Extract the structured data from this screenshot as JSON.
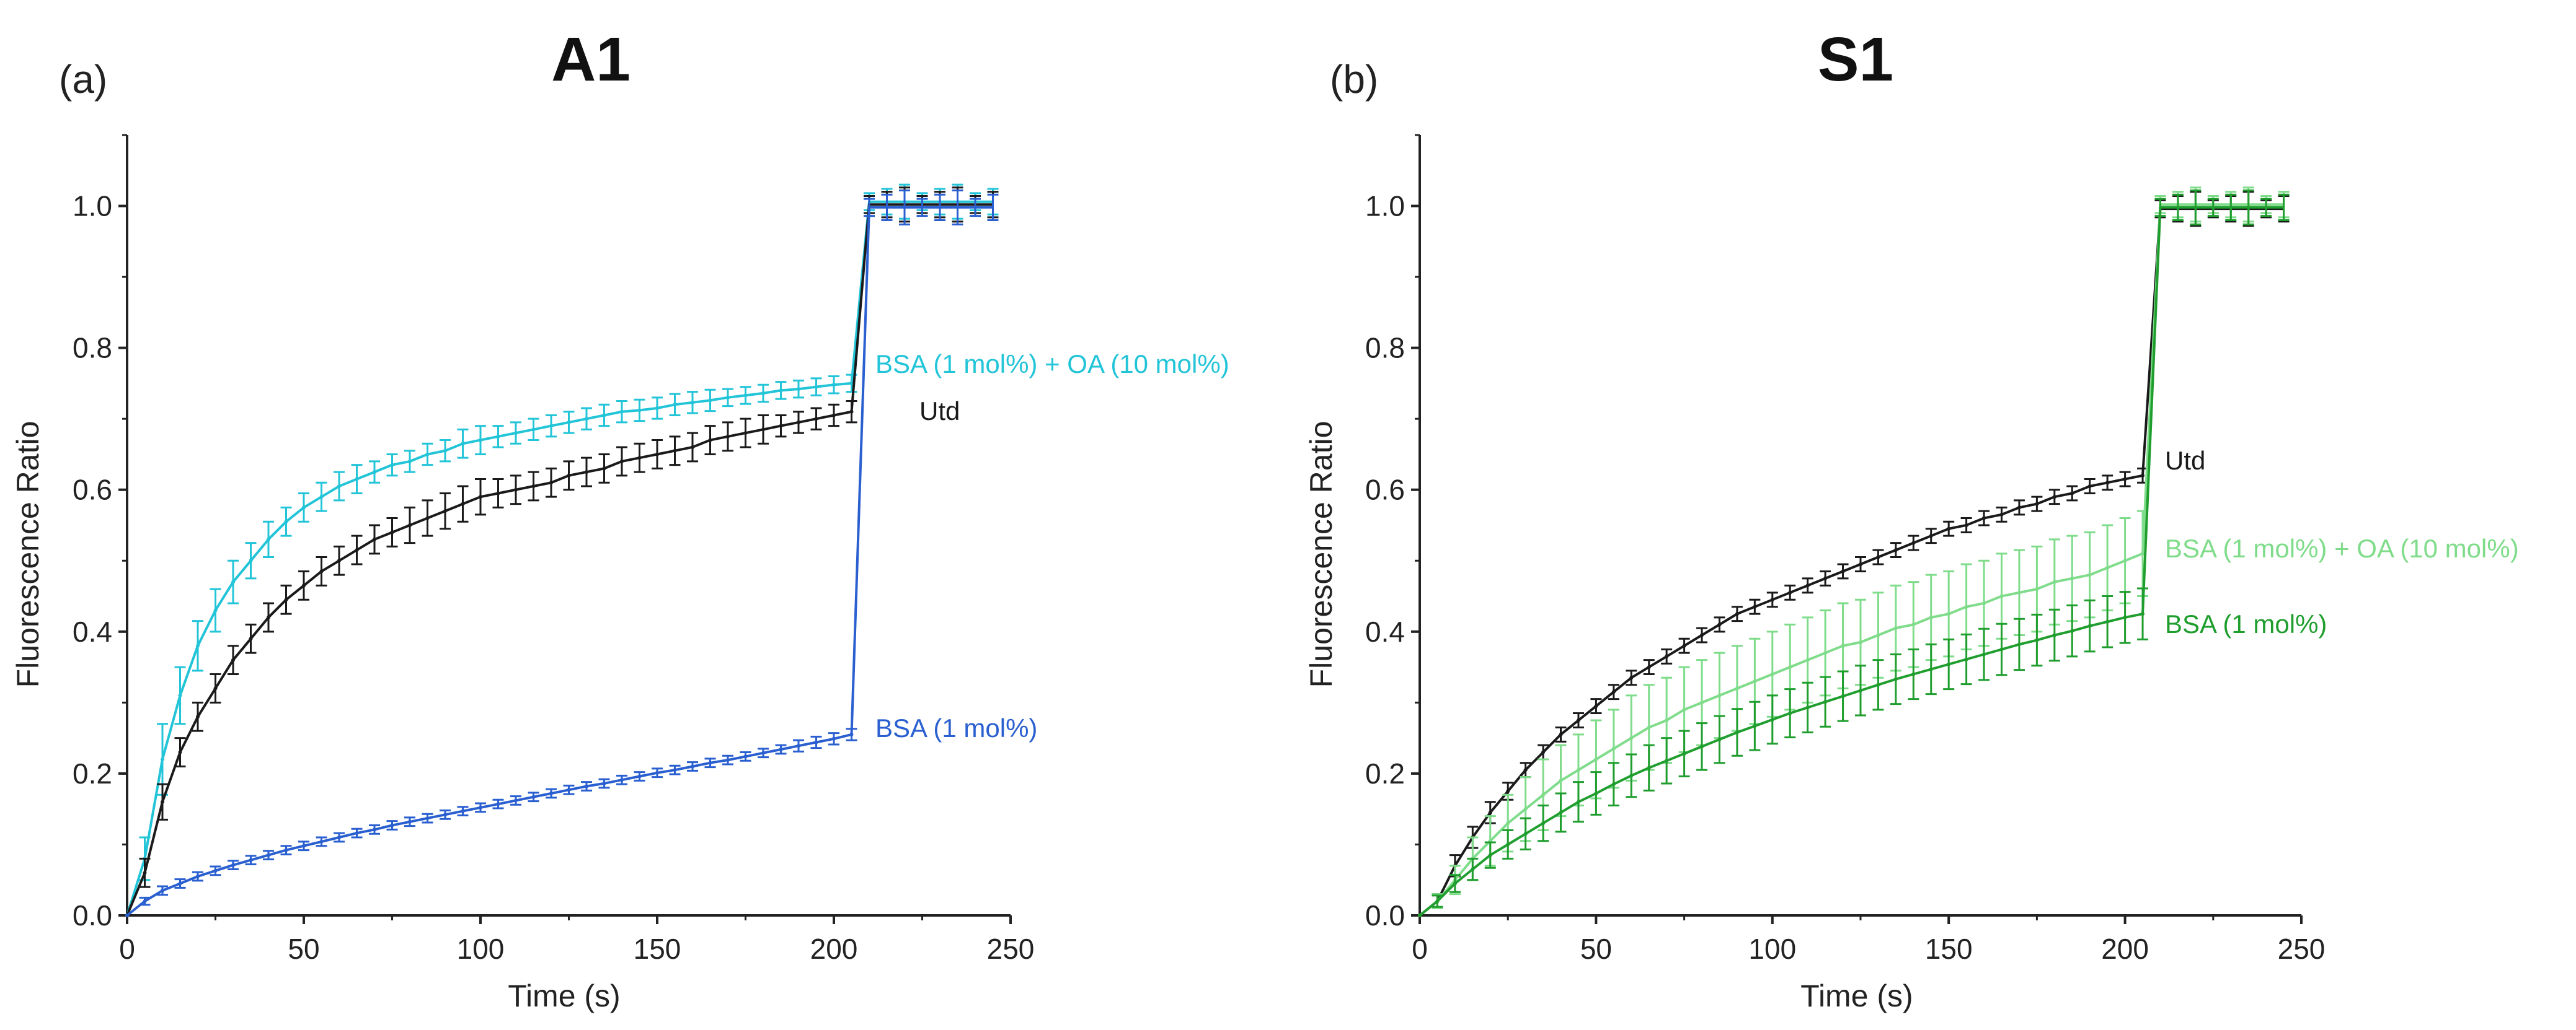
{
  "chart_data": [
    {
      "panel": "(a)",
      "title": "A1",
      "type": "line",
      "xlabel": "Time (s)",
      "ylabel": "Fluorescence Ratio",
      "xlim": [
        0,
        250
      ],
      "ylim": [
        0,
        1.1
      ],
      "xticks": [
        "0",
        "50",
        "100",
        "150",
        "200",
        "250"
      ],
      "yticks": [
        "0.0",
        "0.2",
        "0.4",
        "0.6",
        "0.8",
        "1.0"
      ],
      "series": [
        {
          "name": "BSA (1 mol%) + OA (10 mol%)",
          "color": "#22c4d8",
          "plateau_after_jump": 1.01,
          "x": [
            0,
            5,
            10,
            15,
            20,
            25,
            30,
            35,
            40,
            45,
            50,
            55,
            60,
            65,
            70,
            75,
            80,
            85,
            90,
            95,
            100,
            105,
            110,
            115,
            120,
            125,
            130,
            135,
            140,
            145,
            150,
            155,
            160,
            165,
            170,
            175,
            180,
            185,
            190,
            195,
            200,
            205
          ],
          "y": [
            0.0,
            0.08,
            0.22,
            0.31,
            0.38,
            0.43,
            0.47,
            0.5,
            0.53,
            0.555,
            0.575,
            0.59,
            0.605,
            0.615,
            0.625,
            0.635,
            0.64,
            0.65,
            0.655,
            0.665,
            0.67,
            0.675,
            0.68,
            0.685,
            0.69,
            0.695,
            0.7,
            0.705,
            0.71,
            0.712,
            0.715,
            0.72,
            0.723,
            0.726,
            0.73,
            0.733,
            0.736,
            0.74,
            0.742,
            0.745,
            0.748,
            0.75
          ],
          "err": [
            0,
            0.03,
            0.05,
            0.04,
            0.035,
            0.03,
            0.03,
            0.025,
            0.025,
            0.02,
            0.02,
            0.02,
            0.02,
            0.02,
            0.015,
            0.015,
            0.015,
            0.015,
            0.015,
            0.02,
            0.02,
            0.015,
            0.015,
            0.015,
            0.015,
            0.015,
            0.015,
            0.015,
            0.015,
            0.015,
            0.015,
            0.015,
            0.015,
            0.015,
            0.012,
            0.012,
            0.012,
            0.012,
            0.012,
            0.012,
            0.012,
            0.012
          ]
        },
        {
          "name": "Utd",
          "color": "#1a1a1a",
          "plateau_after_jump": 1.0,
          "x": [
            0,
            5,
            10,
            15,
            20,
            25,
            30,
            35,
            40,
            45,
            50,
            55,
            60,
            65,
            70,
            75,
            80,
            85,
            90,
            95,
            100,
            105,
            110,
            115,
            120,
            125,
            130,
            135,
            140,
            145,
            150,
            155,
            160,
            165,
            170,
            175,
            180,
            185,
            190,
            195,
            200,
            205
          ],
          "y": [
            0.0,
            0.06,
            0.16,
            0.23,
            0.28,
            0.32,
            0.36,
            0.39,
            0.42,
            0.445,
            0.465,
            0.485,
            0.5,
            0.515,
            0.53,
            0.54,
            0.55,
            0.56,
            0.57,
            0.58,
            0.59,
            0.595,
            0.6,
            0.605,
            0.61,
            0.62,
            0.625,
            0.63,
            0.64,
            0.645,
            0.65,
            0.655,
            0.66,
            0.67,
            0.675,
            0.68,
            0.685,
            0.69,
            0.695,
            0.7,
            0.705,
            0.71
          ],
          "err": [
            0,
            0.02,
            0.025,
            0.02,
            0.02,
            0.02,
            0.02,
            0.02,
            0.02,
            0.02,
            0.02,
            0.02,
            0.02,
            0.02,
            0.02,
            0.02,
            0.025,
            0.025,
            0.025,
            0.025,
            0.025,
            0.02,
            0.02,
            0.02,
            0.02,
            0.02,
            0.02,
            0.02,
            0.02,
            0.02,
            0.02,
            0.02,
            0.02,
            0.02,
            0.02,
            0.02,
            0.02,
            0.015,
            0.015,
            0.015,
            0.015,
            0.015
          ]
        },
        {
          "name": "BSA (1 mol%)",
          "color": "#2a5fd0",
          "plateau_after_jump": 1.0,
          "x": [
            0,
            5,
            10,
            15,
            20,
            25,
            30,
            35,
            40,
            45,
            50,
            55,
            60,
            65,
            70,
            75,
            80,
            85,
            90,
            95,
            100,
            105,
            110,
            115,
            120,
            125,
            130,
            135,
            140,
            145,
            150,
            155,
            160,
            165,
            170,
            175,
            180,
            185,
            190,
            195,
            200,
            205
          ],
          "y": [
            0.0,
            0.02,
            0.035,
            0.045,
            0.055,
            0.063,
            0.071,
            0.078,
            0.085,
            0.092,
            0.098,
            0.104,
            0.11,
            0.116,
            0.121,
            0.127,
            0.132,
            0.137,
            0.142,
            0.147,
            0.152,
            0.157,
            0.162,
            0.167,
            0.172,
            0.177,
            0.182,
            0.186,
            0.191,
            0.196,
            0.201,
            0.205,
            0.21,
            0.215,
            0.219,
            0.224,
            0.229,
            0.234,
            0.239,
            0.244,
            0.249,
            0.255
          ],
          "err": [
            0,
            0.005,
            0.006,
            0.006,
            0.006,
            0.006,
            0.006,
            0.006,
            0.006,
            0.006,
            0.006,
            0.006,
            0.006,
            0.006,
            0.006,
            0.006,
            0.006,
            0.006,
            0.006,
            0.006,
            0.006,
            0.006,
            0.006,
            0.006,
            0.006,
            0.006,
            0.006,
            0.006,
            0.006,
            0.006,
            0.006,
            0.006,
            0.006,
            0.006,
            0.006,
            0.006,
            0.006,
            0.006,
            0.008,
            0.008,
            0.008,
            0.008
          ]
        }
      ]
    },
    {
      "panel": "(b)",
      "title": "S1",
      "type": "line",
      "xlabel": "Time (s)",
      "ylabel": "Fluorescence Ratio",
      "xlim": [
        0,
        250
      ],
      "ylim": [
        0,
        1.1
      ],
      "xticks": [
        "0",
        "50",
        "100",
        "150",
        "200",
        "250"
      ],
      "yticks": [
        "0.0",
        "0.2",
        "0.4",
        "0.6",
        "0.8",
        "1.0"
      ],
      "series": [
        {
          "name": "Utd",
          "color": "#1a1a1a",
          "plateau_after_jump": 1.0,
          "x": [
            0,
            5,
            10,
            15,
            20,
            25,
            30,
            35,
            40,
            45,
            50,
            55,
            60,
            65,
            70,
            75,
            80,
            85,
            90,
            95,
            100,
            105,
            110,
            115,
            120,
            125,
            130,
            135,
            140,
            145,
            150,
            155,
            160,
            165,
            170,
            175,
            180,
            185,
            190,
            195,
            200,
            205
          ],
          "y": [
            0.0,
            0.02,
            0.07,
            0.11,
            0.145,
            0.175,
            0.205,
            0.23,
            0.255,
            0.275,
            0.295,
            0.315,
            0.335,
            0.35,
            0.365,
            0.38,
            0.395,
            0.41,
            0.425,
            0.435,
            0.445,
            0.455,
            0.465,
            0.475,
            0.485,
            0.495,
            0.505,
            0.515,
            0.525,
            0.535,
            0.545,
            0.55,
            0.56,
            0.565,
            0.575,
            0.58,
            0.59,
            0.595,
            0.605,
            0.61,
            0.615,
            0.62
          ],
          "err": [
            0,
            0.01,
            0.015,
            0.015,
            0.015,
            0.012,
            0.01,
            0.01,
            0.01,
            0.01,
            0.01,
            0.01,
            0.01,
            0.01,
            0.01,
            0.01,
            0.01,
            0.01,
            0.01,
            0.01,
            0.01,
            0.01,
            0.01,
            0.01,
            0.01,
            0.01,
            0.01,
            0.01,
            0.01,
            0.01,
            0.01,
            0.01,
            0.01,
            0.01,
            0.01,
            0.01,
            0.01,
            0.01,
            0.01,
            0.01,
            0.01,
            0.01
          ]
        },
        {
          "name": "BSA (1 mol%) + OA (10 mol%)",
          "color": "#7fdc8a",
          "plateau_after_jump": 1.0,
          "x": [
            0,
            5,
            10,
            15,
            20,
            25,
            30,
            35,
            40,
            45,
            50,
            55,
            60,
            65,
            70,
            75,
            80,
            85,
            90,
            95,
            100,
            105,
            110,
            115,
            120,
            125,
            130,
            135,
            140,
            145,
            150,
            155,
            160,
            165,
            170,
            175,
            180,
            185,
            190,
            195,
            200,
            205
          ],
          "y": [
            0.0,
            0.02,
            0.05,
            0.08,
            0.105,
            0.13,
            0.15,
            0.17,
            0.19,
            0.205,
            0.22,
            0.235,
            0.25,
            0.265,
            0.275,
            0.29,
            0.3,
            0.31,
            0.32,
            0.33,
            0.34,
            0.35,
            0.36,
            0.37,
            0.38,
            0.385,
            0.395,
            0.405,
            0.41,
            0.42,
            0.425,
            0.435,
            0.44,
            0.45,
            0.455,
            0.46,
            0.47,
            0.475,
            0.48,
            0.49,
            0.5,
            0.51
          ],
          "err": [
            0,
            0.01,
            0.02,
            0.03,
            0.035,
            0.04,
            0.045,
            0.05,
            0.05,
            0.05,
            0.055,
            0.055,
            0.06,
            0.06,
            0.06,
            0.06,
            0.06,
            0.06,
            0.06,
            0.06,
            0.06,
            0.06,
            0.06,
            0.06,
            0.06,
            0.06,
            0.06,
            0.06,
            0.06,
            0.06,
            0.06,
            0.06,
            0.06,
            0.06,
            0.06,
            0.06,
            0.06,
            0.06,
            0.06,
            0.06,
            0.06,
            0.06
          ]
        },
        {
          "name": "BSA (1 mol%)",
          "color": "#1f9e2e",
          "plateau_after_jump": 1.0,
          "x": [
            0,
            5,
            10,
            15,
            20,
            25,
            30,
            35,
            40,
            45,
            50,
            55,
            60,
            65,
            70,
            75,
            80,
            85,
            90,
            95,
            100,
            105,
            110,
            115,
            120,
            125,
            130,
            135,
            140,
            145,
            150,
            155,
            160,
            165,
            170,
            175,
            180,
            185,
            190,
            195,
            200,
            205
          ],
          "y": [
            0.0,
            0.02,
            0.045,
            0.065,
            0.085,
            0.1,
            0.115,
            0.13,
            0.145,
            0.16,
            0.172,
            0.185,
            0.197,
            0.208,
            0.218,
            0.228,
            0.238,
            0.248,
            0.258,
            0.267,
            0.276,
            0.285,
            0.293,
            0.301,
            0.309,
            0.317,
            0.325,
            0.333,
            0.34,
            0.347,
            0.354,
            0.361,
            0.368,
            0.375,
            0.382,
            0.388,
            0.395,
            0.401,
            0.408,
            0.414,
            0.42,
            0.425
          ],
          "err": [
            0,
            0.008,
            0.012,
            0.015,
            0.018,
            0.02,
            0.022,
            0.025,
            0.027,
            0.028,
            0.03,
            0.03,
            0.03,
            0.032,
            0.032,
            0.032,
            0.033,
            0.033,
            0.033,
            0.034,
            0.034,
            0.034,
            0.035,
            0.035,
            0.035,
            0.035,
            0.035,
            0.035,
            0.035,
            0.035,
            0.035,
            0.035,
            0.036,
            0.036,
            0.036,
            0.036,
            0.036,
            0.036,
            0.036,
            0.036,
            0.036,
            0.036
          ]
        }
      ]
    }
  ]
}
